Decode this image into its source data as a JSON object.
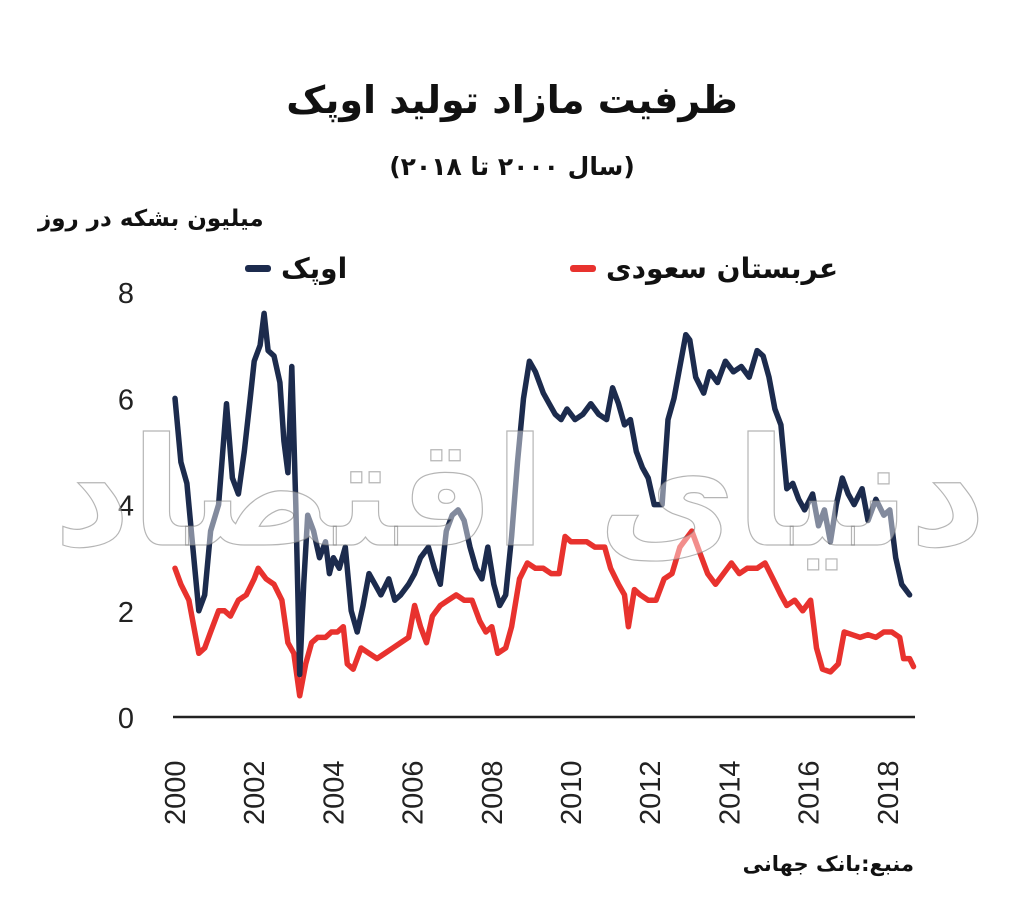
{
  "header": {
    "title": "ظرفیت مازاد تولید اوپک",
    "subtitle": "(سال ۲۰۰۰ تا ۲۰۱۸)",
    "unit_label": "میلیون بشکه در روز"
  },
  "legend": {
    "opec_label": "اوپک",
    "saudi_label": "عربستان سعودی"
  },
  "footer": {
    "source": "منبع:بانک جهانی"
  },
  "colors": {
    "opec": "#1c2b4d",
    "saudi": "#e8322e",
    "axis": "#222222"
  },
  "watermark": "دنیای اقتصاد",
  "chart_data": {
    "type": "line",
    "title": "ظرفیت مازاد تولید اوپک",
    "subtitle": "(سال ۲۰۰۰ تا ۲۰۱۸)",
    "xlabel": "",
    "ylabel": "میلیون بشکه در روز",
    "xlim": [
      2000,
      2018.7
    ],
    "ylim": [
      0,
      8
    ],
    "x_ticks": [
      "2000",
      "2002",
      "2004",
      "2006",
      "2008",
      "2010",
      "2012",
      "2014",
      "2016",
      "2018"
    ],
    "y_ticks": [
      "0",
      "2",
      "4",
      "6",
      "8"
    ],
    "grid": false,
    "legend_position": "top",
    "series": [
      {
        "name": "اوپک",
        "color": "#1c2b4d",
        "points": [
          [
            2000.0,
            6.0
          ],
          [
            2000.15,
            4.8
          ],
          [
            2000.3,
            4.4
          ],
          [
            2000.45,
            3.2
          ],
          [
            2000.6,
            2.0
          ],
          [
            2000.75,
            2.3
          ],
          [
            2000.9,
            3.5
          ],
          [
            2001.1,
            4.0
          ],
          [
            2001.3,
            5.9
          ],
          [
            2001.45,
            4.5
          ],
          [
            2001.6,
            4.2
          ],
          [
            2001.75,
            5.0
          ],
          [
            2001.9,
            6.0
          ],
          [
            2002.0,
            6.7
          ],
          [
            2002.15,
            7.0
          ],
          [
            2002.25,
            7.6
          ],
          [
            2002.35,
            6.9
          ],
          [
            2002.5,
            6.8
          ],
          [
            2002.65,
            6.3
          ],
          [
            2002.75,
            5.2
          ],
          [
            2002.85,
            4.6
          ],
          [
            2002.95,
            6.6
          ],
          [
            2003.05,
            4.0
          ],
          [
            2003.15,
            0.8
          ],
          [
            2003.25,
            2.5
          ],
          [
            2003.35,
            3.8
          ],
          [
            2003.5,
            3.5
          ],
          [
            2003.65,
            3.0
          ],
          [
            2003.8,
            3.3
          ],
          [
            2003.9,
            2.7
          ],
          [
            2004.0,
            3.0
          ],
          [
            2004.15,
            2.8
          ],
          [
            2004.3,
            3.2
          ],
          [
            2004.45,
            2.0
          ],
          [
            2004.6,
            1.6
          ],
          [
            2004.75,
            2.1
          ],
          [
            2004.9,
            2.7
          ],
          [
            2005.05,
            2.5
          ],
          [
            2005.2,
            2.3
          ],
          [
            2005.4,
            2.6
          ],
          [
            2005.55,
            2.2
          ],
          [
            2005.7,
            2.3
          ],
          [
            2005.9,
            2.5
          ],
          [
            2006.05,
            2.7
          ],
          [
            2006.2,
            3.0
          ],
          [
            2006.4,
            3.2
          ],
          [
            2006.55,
            2.8
          ],
          [
            2006.7,
            2.5
          ],
          [
            2006.85,
            3.5
          ],
          [
            2007.0,
            3.8
          ],
          [
            2007.15,
            3.9
          ],
          [
            2007.3,
            3.7
          ],
          [
            2007.45,
            3.2
          ],
          [
            2007.6,
            2.8
          ],
          [
            2007.75,
            2.6
          ],
          [
            2007.9,
            3.2
          ],
          [
            2008.05,
            2.5
          ],
          [
            2008.2,
            2.1
          ],
          [
            2008.35,
            2.3
          ],
          [
            2008.5,
            3.4
          ],
          [
            2008.65,
            4.8
          ],
          [
            2008.8,
            6.0
          ],
          [
            2008.95,
            6.7
          ],
          [
            2009.1,
            6.5
          ],
          [
            2009.3,
            6.1
          ],
          [
            2009.45,
            5.9
          ],
          [
            2009.6,
            5.7
          ],
          [
            2009.75,
            5.6
          ],
          [
            2009.9,
            5.8
          ],
          [
            2010.1,
            5.6
          ],
          [
            2010.3,
            5.7
          ],
          [
            2010.5,
            5.9
          ],
          [
            2010.7,
            5.7
          ],
          [
            2010.9,
            5.6
          ],
          [
            2011.05,
            6.2
          ],
          [
            2011.2,
            5.9
          ],
          [
            2011.35,
            5.5
          ],
          [
            2011.5,
            5.6
          ],
          [
            2011.65,
            5.0
          ],
          [
            2011.8,
            4.7
          ],
          [
            2011.95,
            4.5
          ],
          [
            2012.1,
            4.0
          ],
          [
            2012.3,
            4.0
          ],
          [
            2012.45,
            5.6
          ],
          [
            2012.6,
            6.0
          ],
          [
            2012.75,
            6.6
          ],
          [
            2012.9,
            7.2
          ],
          [
            2013.0,
            7.1
          ],
          [
            2013.15,
            6.4
          ],
          [
            2013.35,
            6.1
          ],
          [
            2013.5,
            6.5
          ],
          [
            2013.7,
            6.3
          ],
          [
            2013.9,
            6.7
          ],
          [
            2014.1,
            6.5
          ],
          [
            2014.3,
            6.6
          ],
          [
            2014.5,
            6.4
          ],
          [
            2014.7,
            6.9
          ],
          [
            2014.85,
            6.8
          ],
          [
            2015.0,
            6.4
          ],
          [
            2015.15,
            5.8
          ],
          [
            2015.3,
            5.5
          ],
          [
            2015.45,
            4.3
          ],
          [
            2015.6,
            4.4
          ],
          [
            2015.75,
            4.1
          ],
          [
            2015.9,
            3.9
          ],
          [
            2016.1,
            4.2
          ],
          [
            2016.25,
            3.6
          ],
          [
            2016.4,
            3.9
          ],
          [
            2016.55,
            3.3
          ],
          [
            2016.7,
            4.0
          ],
          [
            2016.85,
            4.5
          ],
          [
            2017.0,
            4.2
          ],
          [
            2017.15,
            4.0
          ],
          [
            2017.35,
            4.3
          ],
          [
            2017.5,
            3.7
          ],
          [
            2017.7,
            4.1
          ],
          [
            2017.9,
            3.8
          ],
          [
            2018.05,
            3.9
          ],
          [
            2018.2,
            3.0
          ],
          [
            2018.35,
            2.5
          ],
          [
            2018.55,
            2.3
          ]
        ]
      },
      {
        "name": "عربستان سعودی",
        "color": "#e8322e",
        "points": [
          [
            2000.0,
            2.8
          ],
          [
            2000.15,
            2.5
          ],
          [
            2000.35,
            2.2
          ],
          [
            2000.5,
            1.6
          ],
          [
            2000.6,
            1.2
          ],
          [
            2000.75,
            1.3
          ],
          [
            2000.9,
            1.6
          ],
          [
            2001.1,
            2.0
          ],
          [
            2001.25,
            2.0
          ],
          [
            2001.4,
            1.9
          ],
          [
            2001.6,
            2.2
          ],
          [
            2001.8,
            2.3
          ],
          [
            2002.0,
            2.6
          ],
          [
            2002.1,
            2.8
          ],
          [
            2002.3,
            2.6
          ],
          [
            2002.5,
            2.5
          ],
          [
            2002.7,
            2.2
          ],
          [
            2002.85,
            1.4
          ],
          [
            2003.0,
            1.2
          ],
          [
            2003.15,
            0.4
          ],
          [
            2003.3,
            1.0
          ],
          [
            2003.45,
            1.4
          ],
          [
            2003.6,
            1.5
          ],
          [
            2003.8,
            1.5
          ],
          [
            2003.95,
            1.6
          ],
          [
            2004.1,
            1.6
          ],
          [
            2004.25,
            1.7
          ],
          [
            2004.35,
            1.0
          ],
          [
            2004.5,
            0.9
          ],
          [
            2004.7,
            1.3
          ],
          [
            2004.9,
            1.2
          ],
          [
            2005.1,
            1.1
          ],
          [
            2005.3,
            1.2
          ],
          [
            2005.5,
            1.3
          ],
          [
            2005.7,
            1.4
          ],
          [
            2005.9,
            1.5
          ],
          [
            2006.05,
            2.1
          ],
          [
            2006.2,
            1.7
          ],
          [
            2006.35,
            1.4
          ],
          [
            2006.5,
            1.9
          ],
          [
            2006.7,
            2.1
          ],
          [
            2006.9,
            2.2
          ],
          [
            2007.1,
            2.3
          ],
          [
            2007.3,
            2.2
          ],
          [
            2007.5,
            2.2
          ],
          [
            2007.7,
            1.8
          ],
          [
            2007.85,
            1.6
          ],
          [
            2008.0,
            1.7
          ],
          [
            2008.15,
            1.2
          ],
          [
            2008.35,
            1.3
          ],
          [
            2008.5,
            1.7
          ],
          [
            2008.7,
            2.6
          ],
          [
            2008.9,
            2.9
          ],
          [
            2009.1,
            2.8
          ],
          [
            2009.3,
            2.8
          ],
          [
            2009.5,
            2.7
          ],
          [
            2009.7,
            2.7
          ],
          [
            2009.85,
            3.4
          ],
          [
            2010.0,
            3.3
          ],
          [
            2010.2,
            3.3
          ],
          [
            2010.4,
            3.3
          ],
          [
            2010.6,
            3.2
          ],
          [
            2010.85,
            3.2
          ],
          [
            2011.0,
            2.8
          ],
          [
            2011.2,
            2.5
          ],
          [
            2011.35,
            2.3
          ],
          [
            2011.45,
            1.7
          ],
          [
            2011.6,
            2.4
          ],
          [
            2011.75,
            2.3
          ],
          [
            2011.95,
            2.2
          ],
          [
            2012.15,
            2.2
          ],
          [
            2012.35,
            2.6
          ],
          [
            2012.55,
            2.7
          ],
          [
            2012.75,
            3.2
          ],
          [
            2013.05,
            3.5
          ],
          [
            2013.25,
            3.1
          ],
          [
            2013.45,
            2.7
          ],
          [
            2013.65,
            2.5
          ],
          [
            2013.85,
            2.7
          ],
          [
            2014.05,
            2.9
          ],
          [
            2014.25,
            2.7
          ],
          [
            2014.45,
            2.8
          ],
          [
            2014.7,
            2.8
          ],
          [
            2014.9,
            2.9
          ],
          [
            2015.1,
            2.6
          ],
          [
            2015.3,
            2.3
          ],
          [
            2015.45,
            2.1
          ],
          [
            2015.65,
            2.2
          ],
          [
            2015.85,
            2.0
          ],
          [
            2016.05,
            2.2
          ],
          [
            2016.2,
            1.3
          ],
          [
            2016.35,
            0.9
          ],
          [
            2016.55,
            0.85
          ],
          [
            2016.75,
            1.0
          ],
          [
            2016.9,
            1.6
          ],
          [
            2017.1,
            1.55
          ],
          [
            2017.3,
            1.5
          ],
          [
            2017.5,
            1.55
          ],
          [
            2017.7,
            1.5
          ],
          [
            2017.9,
            1.6
          ],
          [
            2018.1,
            1.6
          ],
          [
            2018.3,
            1.5
          ],
          [
            2018.4,
            1.1
          ],
          [
            2018.55,
            1.1
          ],
          [
            2018.65,
            0.95
          ]
        ]
      }
    ]
  }
}
